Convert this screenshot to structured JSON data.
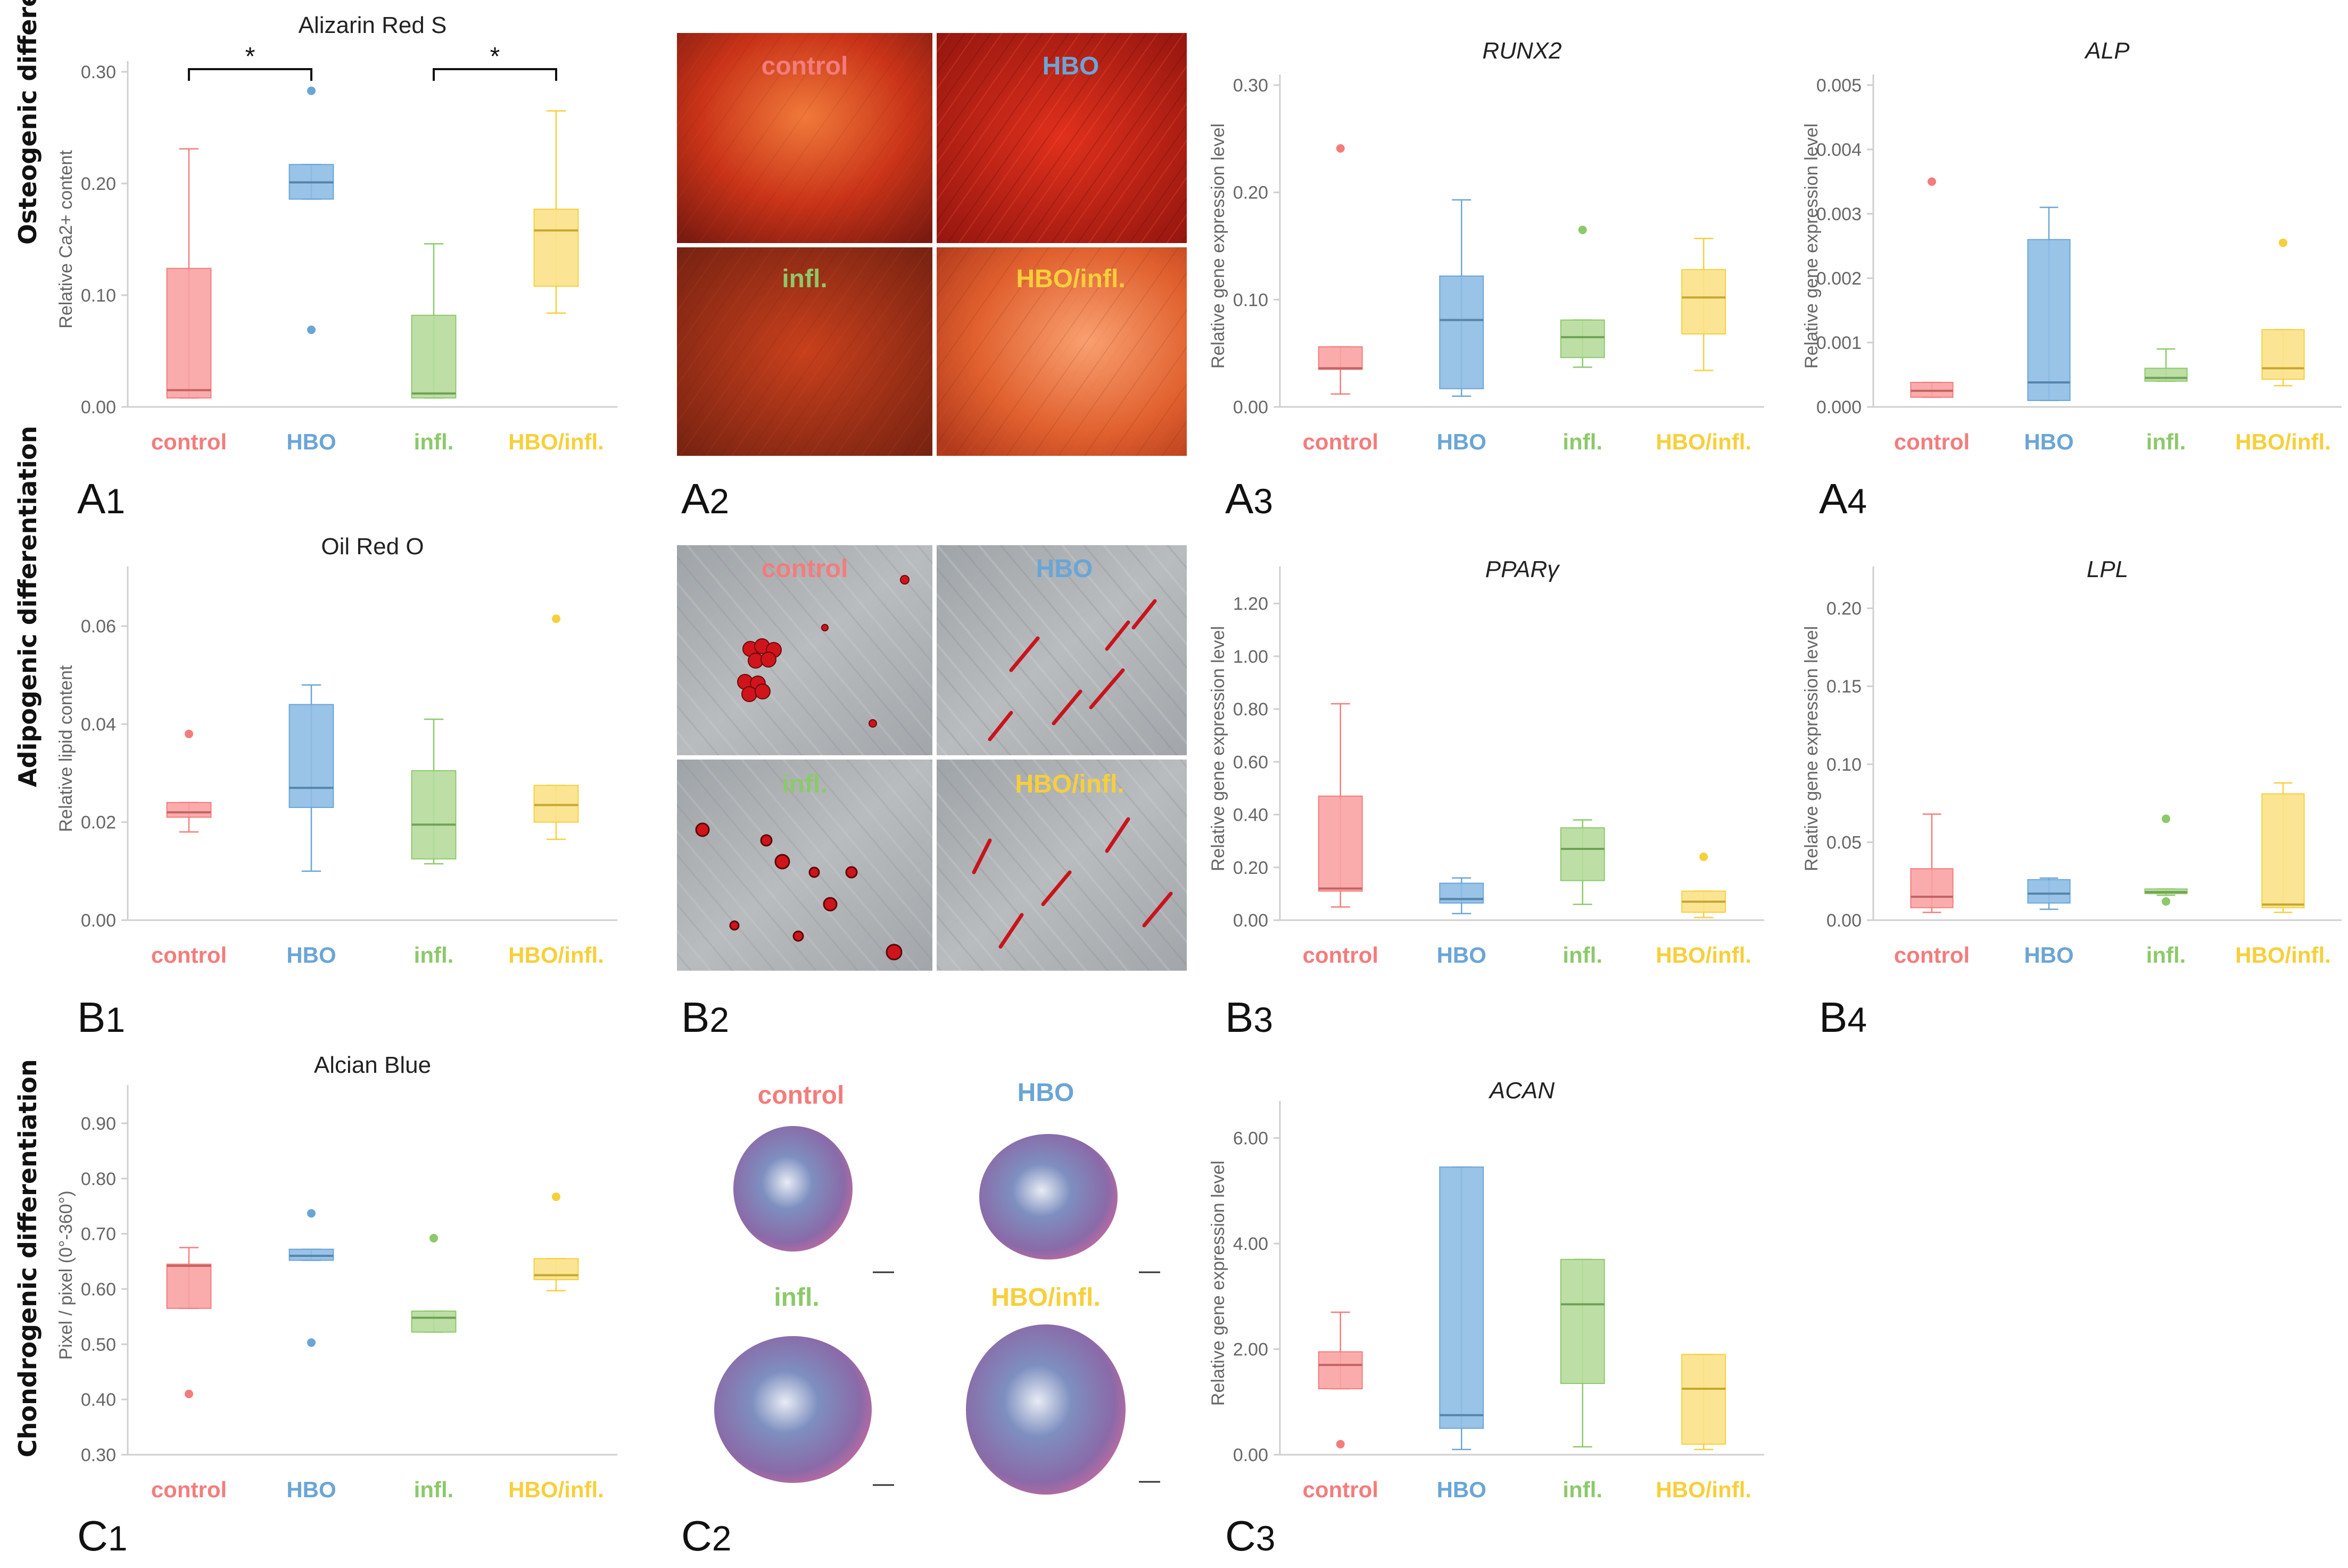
{
  "row_labels": [
    "Osteogenic differentiation",
    "Adipogenic differentiation",
    "Chondrogenic differentiation"
  ],
  "groups": [
    "control",
    "HBO",
    "infl.",
    "HBO/infl."
  ],
  "colors": {
    "control": "#f47c7c",
    "HBO": "#6aa5d6",
    "infl.": "#8cc96a",
    "HBO/infl.": "#f7cf3a"
  },
  "fills": {
    "control": "#f9a3a3",
    "HBO": "#8ebce4",
    "infl.": "#b6db9c",
    "HBO/infl.": "#fbe289"
  },
  "panel_labels": {
    "A1": "A1",
    "A2": "A2",
    "A3": "A3",
    "A4": "A4",
    "B1": "B1",
    "B2": "B2",
    "B3": "B3",
    "B4": "B4",
    "C1": "C1",
    "C2": "C2",
    "C3": "C3"
  },
  "micro_labels": {
    "A2": [
      "control",
      "HBO",
      "infl.",
      "HBO/infl."
    ],
    "B2": [
      "control",
      "HBO",
      "infl.",
      "HBO/infl."
    ],
    "C2": [
      "control",
      "HBO",
      "infl.",
      "HBO/infl."
    ]
  },
  "chart_data": [
    {
      "id": "A1",
      "type": "box",
      "title": "Alizarin Red S",
      "title_italic": false,
      "ylabel": "Relative Ca2+ content",
      "ylim": [
        0,
        0.3
      ],
      "yticks": [
        0.0,
        0.1,
        0.2,
        0.3
      ],
      "tick_labels": [
        "0.00",
        "0.10",
        "0.20",
        "0.30"
      ],
      "significance": [
        {
          "from": 0,
          "to": 1,
          "label": "*"
        },
        {
          "from": 2,
          "to": 3,
          "label": "*"
        }
      ],
      "boxes": [
        {
          "group": "control",
          "min": 0.008,
          "q1": 0.008,
          "median": 0.015,
          "q3": 0.124,
          "max": 0.231,
          "outliers": []
        },
        {
          "group": "HBO",
          "min": 0.186,
          "q1": 0.186,
          "median": 0.201,
          "q3": 0.217,
          "max": 0.217,
          "outliers": [
            0.283,
            0.069
          ]
        },
        {
          "group": "infl.",
          "min": 0.008,
          "q1": 0.008,
          "median": 0.012,
          "q3": 0.082,
          "max": 0.146,
          "outliers": []
        },
        {
          "group": "HBO/infl.",
          "min": 0.084,
          "q1": 0.108,
          "median": 0.158,
          "q3": 0.177,
          "max": 0.265,
          "outliers": []
        }
      ]
    },
    {
      "id": "A3",
      "type": "box",
      "title": "RUNX2",
      "title_italic": true,
      "ylabel": "Relative gene expression level",
      "ylim": [
        0,
        0.3
      ],
      "yticks": [
        0.0,
        0.1,
        0.2,
        0.3
      ],
      "tick_labels": [
        "0.00",
        "0.10",
        "0.20",
        "0.30"
      ],
      "significance": [],
      "boxes": [
        {
          "group": "control",
          "min": 0.012,
          "q1": 0.035,
          "median": 0.036,
          "q3": 0.056,
          "max": 0.056,
          "outliers": [
            0.241
          ]
        },
        {
          "group": "HBO",
          "min": 0.01,
          "q1": 0.017,
          "median": 0.081,
          "q3": 0.122,
          "max": 0.193,
          "outliers": []
        },
        {
          "group": "infl.",
          "min": 0.037,
          "q1": 0.046,
          "median": 0.065,
          "q3": 0.081,
          "max": 0.081,
          "outliers": [
            0.165
          ]
        },
        {
          "group": "HBO/infl.",
          "min": 0.034,
          "q1": 0.068,
          "median": 0.102,
          "q3": 0.128,
          "max": 0.157,
          "outliers": []
        }
      ]
    },
    {
      "id": "A4",
      "type": "box",
      "title": "ALP",
      "title_italic": true,
      "ylabel": "Relative gene expression level",
      "ylim": [
        0,
        0.005
      ],
      "yticks": [
        0,
        0.001,
        0.002,
        0.003,
        0.004,
        0.005
      ],
      "tick_labels": [
        "0.000",
        "0.001",
        "0.002",
        "0.003",
        "0.004",
        "0.005"
      ],
      "significance": [],
      "boxes": [
        {
          "group": "control",
          "min": 0.00015,
          "q1": 0.00015,
          "median": 0.00025,
          "q3": 0.00038,
          "max": 0.00038,
          "outliers": [
            0.0035
          ]
        },
        {
          "group": "HBO",
          "min": 0.0001,
          "q1": 0.0001,
          "median": 0.00038,
          "q3": 0.0026,
          "max": 0.0031,
          "outliers": []
        },
        {
          "group": "infl.",
          "min": 0.0004,
          "q1": 0.0004,
          "median": 0.00045,
          "q3": 0.0006,
          "max": 0.0009,
          "outliers": []
        },
        {
          "group": "HBO/infl.",
          "min": 0.00033,
          "q1": 0.00043,
          "median": 0.0006,
          "q3": 0.0012,
          "max": 0.0012,
          "outliers": [
            0.00255
          ]
        }
      ]
    },
    {
      "id": "B1",
      "type": "box",
      "title": "Oil Red O",
      "title_italic": false,
      "ylabel": "Relative lipid content",
      "ylim": [
        0,
        0.07
      ],
      "yticks": [
        0,
        0.02,
        0.04,
        0.06
      ],
      "tick_labels": [
        "0.00",
        "0.02",
        "0.04",
        "0.06"
      ],
      "significance": [],
      "boxes": [
        {
          "group": "control",
          "min": 0.018,
          "q1": 0.021,
          "median": 0.022,
          "q3": 0.024,
          "max": 0.024,
          "outliers": [
            0.038
          ]
        },
        {
          "group": "HBO",
          "min": 0.01,
          "q1": 0.023,
          "median": 0.027,
          "q3": 0.044,
          "max": 0.048,
          "outliers": []
        },
        {
          "group": "infl.",
          "min": 0.0115,
          "q1": 0.0125,
          "median": 0.0195,
          "q3": 0.0305,
          "max": 0.041,
          "outliers": []
        },
        {
          "group": "HBO/infl.",
          "min": 0.0165,
          "q1": 0.02,
          "median": 0.0235,
          "q3": 0.0275,
          "max": 0.0275,
          "outliers": [
            0.0615
          ]
        }
      ]
    },
    {
      "id": "B3",
      "type": "box",
      "title": "PPARγ",
      "title_italic": true,
      "ylabel": "Relative gene expression level",
      "ylim": [
        0,
        1.3
      ],
      "yticks": [
        0,
        0.2,
        0.4,
        0.6,
        0.8,
        1.0,
        1.2
      ],
      "tick_labels": [
        "0.00",
        "0.20",
        "0.40",
        "0.60",
        "0.80",
        "1.00",
        "1.20"
      ],
      "significance": [],
      "boxes": [
        {
          "group": "control",
          "min": 0.05,
          "q1": 0.11,
          "median": 0.12,
          "q3": 0.47,
          "max": 0.82,
          "outliers": []
        },
        {
          "group": "HBO",
          "min": 0.025,
          "q1": 0.065,
          "median": 0.08,
          "q3": 0.14,
          "max": 0.16,
          "outliers": []
        },
        {
          "group": "infl.",
          "min": 0.06,
          "q1": 0.15,
          "median": 0.27,
          "q3": 0.35,
          "max": 0.38,
          "outliers": []
        },
        {
          "group": "HBO/infl.",
          "min": 0.01,
          "q1": 0.03,
          "median": 0.07,
          "q3": 0.11,
          "max": 0.11,
          "outliers": [
            0.24
          ]
        }
      ]
    },
    {
      "id": "B4",
      "type": "box",
      "title": "LPL",
      "title_italic": true,
      "ylabel": "Relative gene expression level",
      "ylim": [
        0,
        0.22
      ],
      "yticks": [
        0,
        0.05,
        0.1,
        0.15,
        0.2
      ],
      "tick_labels": [
        "0.00",
        "0.05",
        "0.10",
        "0.15",
        "0.20"
      ],
      "significance": [],
      "boxes": [
        {
          "group": "control",
          "min": 0.005,
          "q1": 0.008,
          "median": 0.015,
          "q3": 0.033,
          "max": 0.068,
          "outliers": []
        },
        {
          "group": "HBO",
          "min": 0.007,
          "q1": 0.011,
          "median": 0.017,
          "q3": 0.026,
          "max": 0.027,
          "outliers": []
        },
        {
          "group": "infl.",
          "min": 0.016,
          "q1": 0.017,
          "median": 0.018,
          "q3": 0.02,
          "max": 0.02,
          "outliers": [
            0.065,
            0.012
          ]
        },
        {
          "group": "HBO/infl.",
          "min": 0.005,
          "q1": 0.008,
          "median": 0.01,
          "q3": 0.081,
          "max": 0.088,
          "outliers": []
        }
      ]
    },
    {
      "id": "C1",
      "type": "box",
      "title": "Alcian Blue",
      "title_italic": false,
      "ylabel": "Pixel / pixel (0°-360°)",
      "ylim": [
        0.3,
        0.95
      ],
      "yticks": [
        0.3,
        0.4,
        0.5,
        0.6,
        0.7,
        0.8,
        0.9
      ],
      "tick_labels": [
        "0.30",
        "0.40",
        "0.50",
        "0.60",
        "0.70",
        "0.80",
        "0.90"
      ],
      "significance": [],
      "boxes": [
        {
          "group": "control",
          "min": 0.565,
          "q1": 0.565,
          "median": 0.642,
          "q3": 0.645,
          "max": 0.675,
          "outliers": [
            0.41
          ]
        },
        {
          "group": "HBO",
          "min": 0.652,
          "q1": 0.652,
          "median": 0.66,
          "q3": 0.672,
          "max": 0.672,
          "outliers": [
            0.737,
            0.503
          ]
        },
        {
          "group": "infl.",
          "min": 0.522,
          "q1": 0.522,
          "median": 0.548,
          "q3": 0.56,
          "max": 0.56,
          "outliers": [
            0.692
          ]
        },
        {
          "group": "HBO/infl.",
          "min": 0.597,
          "q1": 0.617,
          "median": 0.625,
          "q3": 0.655,
          "max": 0.655,
          "outliers": [
            0.767
          ]
        }
      ]
    },
    {
      "id": "C3",
      "type": "box",
      "title": "ACAN",
      "title_italic": true,
      "ylabel": "Relative gene expression level",
      "ylim": [
        0,
        6.5
      ],
      "yticks": [
        0,
        2,
        4,
        6
      ],
      "tick_labels": [
        "0.00",
        "2.00",
        "4.00",
        "6.00"
      ],
      "significance": [],
      "boxes": [
        {
          "group": "control",
          "min": 1.25,
          "q1": 1.25,
          "median": 1.7,
          "q3": 1.95,
          "max": 2.7,
          "outliers": [
            0.2
          ]
        },
        {
          "group": "HBO",
          "min": 0.1,
          "q1": 0.5,
          "median": 0.75,
          "q3": 5.45,
          "max": 5.45,
          "outliers": []
        },
        {
          "group": "infl.",
          "min": 0.15,
          "q1": 1.35,
          "median": 2.85,
          "q3": 3.7,
          "max": 3.7,
          "outliers": []
        },
        {
          "group": "HBO/infl.",
          "min": 0.1,
          "q1": 0.2,
          "median": 1.25,
          "q3": 1.9,
          "max": 1.9,
          "outliers": []
        }
      ]
    }
  ]
}
